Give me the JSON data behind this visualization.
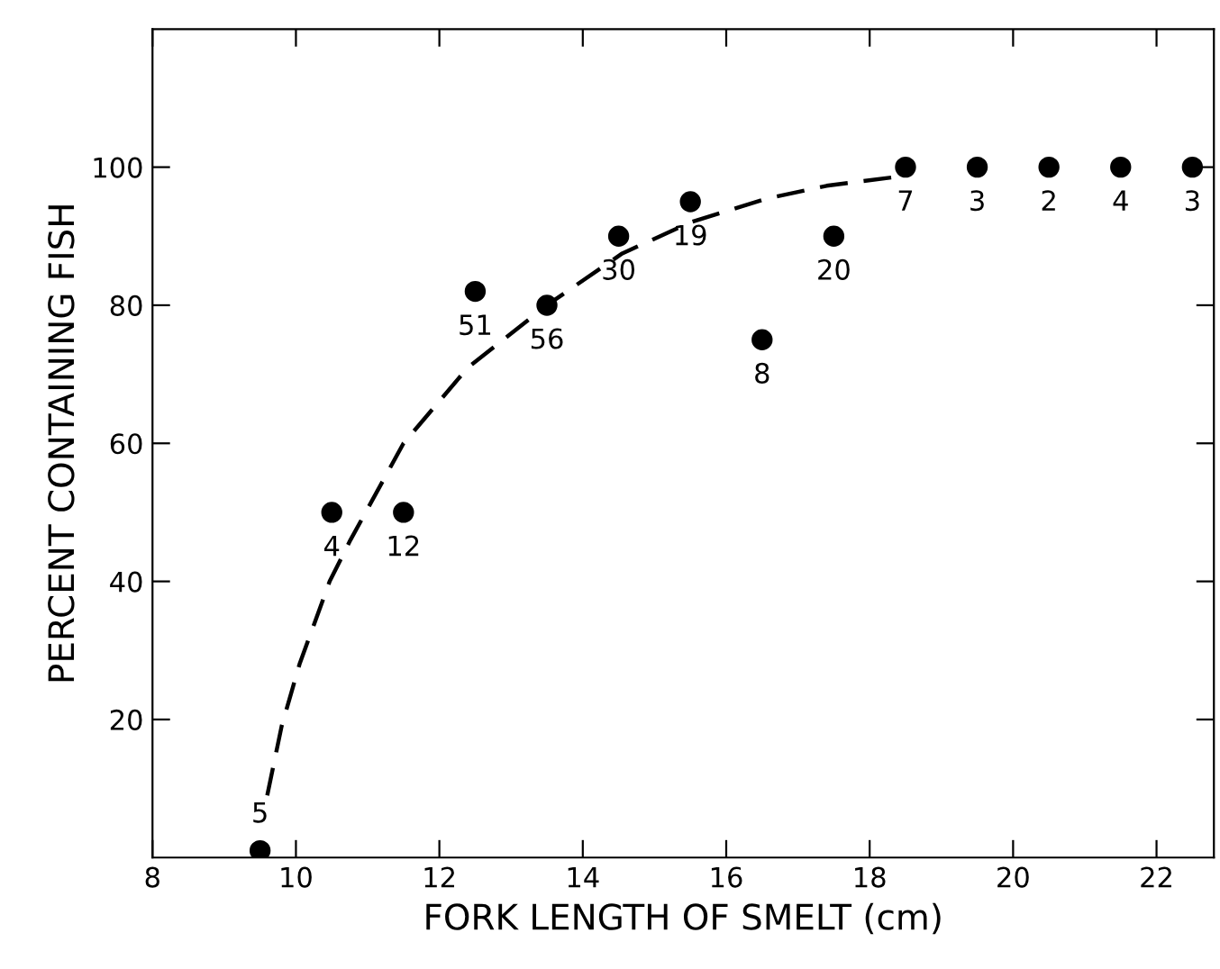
{
  "chart_data": {
    "type": "scatter",
    "xlabel": "FORK LENGTH OF SMELT (cm)",
    "ylabel": "PERCENT CONTAINING FISH",
    "xlim": [
      8,
      22.8
    ],
    "xticks": [
      8,
      10,
      12,
      14,
      16,
      18,
      20,
      22
    ],
    "ylim": [
      0,
      120
    ],
    "yticks": [
      20,
      40,
      60,
      80,
      100
    ],
    "grid": false,
    "legend": false,
    "series": [
      {
        "color": "#000000",
        "marker": "circle",
        "x": [
          9.5,
          10.5,
          11.5,
          12.5,
          13.5,
          14.5,
          15.5,
          16.5,
          17.5,
          18.5,
          19.5,
          20.5,
          21.5,
          22.5
        ],
        "values": [
          1,
          50,
          50,
          82,
          80,
          90,
          95,
          75,
          90,
          100,
          100,
          100,
          100,
          100
        ]
      },
      {
        "type": "line",
        "color": "#000000",
        "line_style": "dashed",
        "marker": "none",
        "x": [
          9.6,
          9.8,
          10.05,
          10.47,
          10.76,
          11.5,
          12.4,
          13.5,
          14.55,
          15.5,
          16.55,
          17.4,
          18.3
        ],
        "values": [
          9,
          19,
          28,
          40,
          46,
          60,
          71,
          80,
          87.5,
          92,
          95.4,
          97.3,
          98.5
        ]
      }
    ],
    "annotations": [
      {
        "text": "5",
        "x": 9.5,
        "y": 1
      },
      {
        "text": "4",
        "x": 10.5,
        "y": 50
      },
      {
        "text": "12",
        "x": 11.5,
        "y": 50
      },
      {
        "text": "51",
        "x": 12.5,
        "y": 82
      },
      {
        "text": "56",
        "x": 13.5,
        "y": 80
      },
      {
        "text": "30",
        "x": 14.5,
        "y": 90
      },
      {
        "text": "19",
        "x": 15.5,
        "y": 95
      },
      {
        "text": "8",
        "x": 16.5,
        "y": 75
      },
      {
        "text": "20",
        "x": 17.5,
        "y": 90
      },
      {
        "text": "7",
        "x": 18.5,
        "y": 100
      },
      {
        "text": "3",
        "x": 19.5,
        "y": 100
      },
      {
        "text": "2",
        "x": 20.5,
        "y": 100
      },
      {
        "text": "4",
        "x": 21.5,
        "y": 100
      },
      {
        "text": "3",
        "x": 22.5,
        "y": 100
      }
    ]
  }
}
